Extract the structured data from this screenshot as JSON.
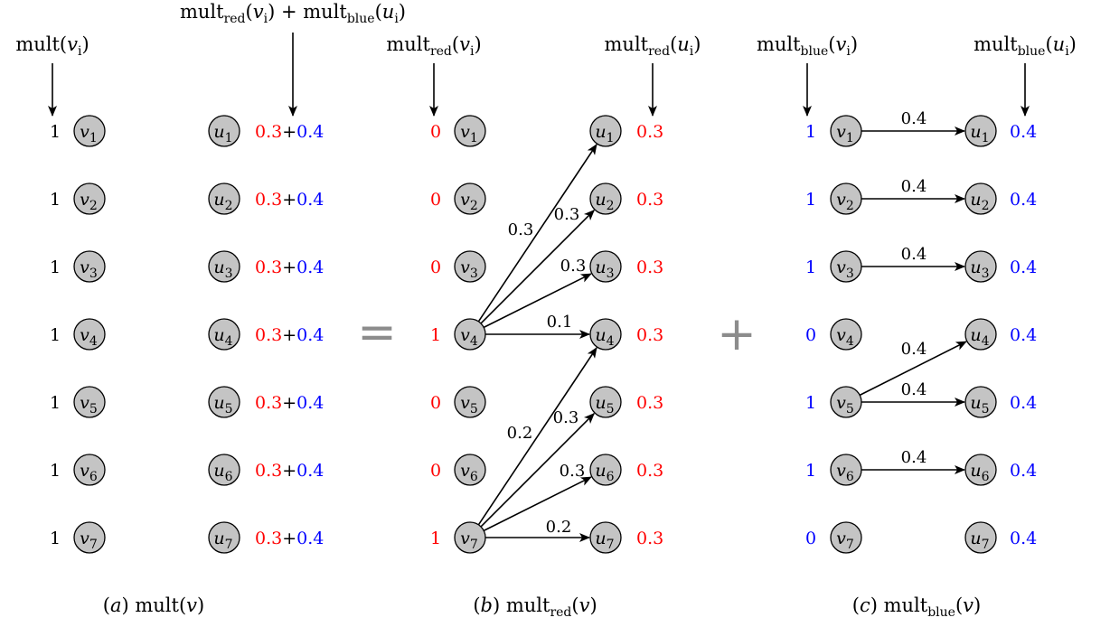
{
  "colors": {
    "red": "#ff0000",
    "blue": "#0000ff",
    "black": "#000000",
    "node_fill": "#c4c4c4",
    "operator": "#8c8c8c"
  },
  "operators": {
    "equals": "=",
    "plus": "+"
  },
  "panel_a": {
    "header_left": {
      "base": "mult",
      "sub": "",
      "arg": "v",
      "arg_sub": "i"
    },
    "header_right": "mult_red(v_i) + mult_blue(u_i)",
    "left_values": [
      "1",
      "1",
      "1",
      "1",
      "1",
      "1",
      "1"
    ],
    "right_values": [
      {
        "red": "0.3",
        "plus": "+",
        "blue": "0.4"
      },
      {
        "red": "0.3",
        "plus": "+",
        "blue": "0.4"
      },
      {
        "red": "0.3",
        "plus": "+",
        "blue": "0.4"
      },
      {
        "red": "0.3",
        "plus": "+",
        "blue": "0.4"
      },
      {
        "red": "0.3",
        "plus": "+",
        "blue": "0.4"
      },
      {
        "red": "0.3",
        "plus": "+",
        "blue": "0.4"
      },
      {
        "red": "0.3",
        "plus": "+",
        "blue": "0.4"
      }
    ],
    "caption": {
      "letter": "a",
      "base": "mult",
      "sub": "",
      "arg": "v"
    }
  },
  "panel_b": {
    "header_left": {
      "base": "mult",
      "sub": "red",
      "arg": "v",
      "arg_sub": "i"
    },
    "header_right": {
      "base": "mult",
      "sub": "red",
      "arg": "u",
      "arg_sub": "i"
    },
    "left_values": [
      "0",
      "0",
      "0",
      "1",
      "0",
      "0",
      "1"
    ],
    "right_values": [
      "0.3",
      "0.3",
      "0.3",
      "0.3",
      "0.3",
      "0.3",
      "0.3"
    ],
    "edges": [
      {
        "from": 4,
        "to": 1,
        "weight": "0.3"
      },
      {
        "from": 4,
        "to": 2,
        "weight": "0.3"
      },
      {
        "from": 4,
        "to": 3,
        "weight": "0.3"
      },
      {
        "from": 4,
        "to": 4,
        "weight": "0.1"
      },
      {
        "from": 7,
        "to": 4,
        "weight": "0.2"
      },
      {
        "from": 7,
        "to": 5,
        "weight": "0.3"
      },
      {
        "from": 7,
        "to": 6,
        "weight": "0.3"
      },
      {
        "from": 7,
        "to": 7,
        "weight": "0.2"
      }
    ],
    "caption": {
      "letter": "b",
      "base": "mult",
      "sub": "red",
      "arg": "v"
    }
  },
  "panel_c": {
    "header_left": {
      "base": "mult",
      "sub": "blue",
      "arg": "v",
      "arg_sub": "i"
    },
    "header_right": {
      "base": "mult",
      "sub": "blue",
      "arg": "u",
      "arg_sub": "i"
    },
    "left_values": [
      "1",
      "1",
      "1",
      "0",
      "1",
      "1",
      "0"
    ],
    "right_values": [
      "0.4",
      "0.4",
      "0.4",
      "0.4",
      "0.4",
      "0.4",
      "0.4"
    ],
    "edges": [
      {
        "from": 1,
        "to": 1,
        "weight": "0.4"
      },
      {
        "from": 2,
        "to": 2,
        "weight": "0.4"
      },
      {
        "from": 3,
        "to": 3,
        "weight": "0.4"
      },
      {
        "from": 5,
        "to": 4,
        "weight": "0.4"
      },
      {
        "from": 5,
        "to": 5,
        "weight": "0.4"
      },
      {
        "from": 6,
        "to": 6,
        "weight": "0.4"
      }
    ],
    "caption": {
      "letter": "c",
      "base": "mult",
      "sub": "blue",
      "arg": "v"
    }
  }
}
